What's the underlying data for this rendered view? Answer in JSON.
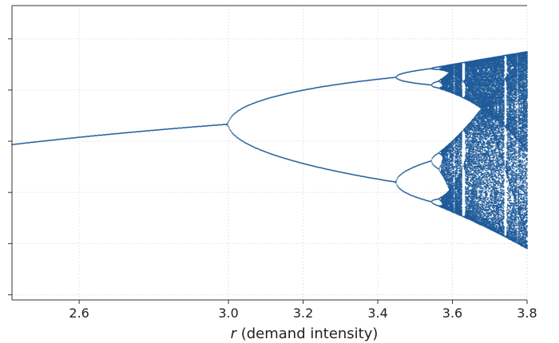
{
  "chart_data": {
    "type": "scatter",
    "title": "",
    "xlabel": {
      "italic": "r",
      "rest": " (demand intensity)"
    },
    "ylabel": "",
    "xlim": [
      2.42,
      3.8
    ],
    "ylim": [
      -0.02,
      1.13
    ],
    "x_ticks": [
      {
        "value": 2.6,
        "label": "2.6"
      },
      {
        "value": 3.0,
        "label": "3.0"
      },
      {
        "value": 3.2,
        "label": "3.2"
      },
      {
        "value": 3.4,
        "label": "3.4"
      },
      {
        "value": 3.6,
        "label": "3.6"
      },
      {
        "value": 3.8,
        "label": "3.8"
      }
    ],
    "y_ticks": [
      0.0,
      0.2,
      0.4,
      0.6,
      0.8,
      1.0
    ],
    "y_tick_labels_visible": false,
    "grid": true,
    "series": [
      {
        "model": "logistic map x_{n+1} = r * x_n * (1 - x_n)",
        "r_start": 2.42,
        "r_end": 3.8,
        "color": "#1f5b99",
        "note": "bifurcation diagram: fixed point, period-doubling at r=3.0 and r~3.45, chaos beyond r~3.57"
      }
    ]
  }
}
